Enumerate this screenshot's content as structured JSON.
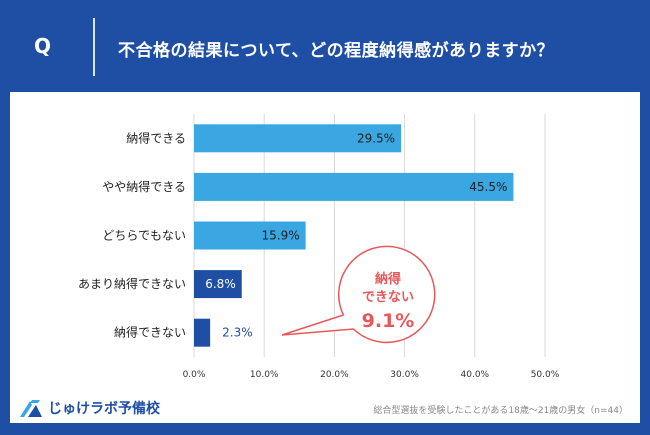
{
  "header": {
    "q_mark": "Q",
    "question": "不合格の結果について、どの程度納得感がありますか？"
  },
  "chart_data": {
    "type": "bar",
    "orientation": "horizontal",
    "categories": [
      "納得できる",
      "やや納得できる",
      "どちらでもない",
      "あまり納得できない",
      "納得できない"
    ],
    "values": [
      29.5,
      45.5,
      15.9,
      6.8,
      2.3
    ],
    "value_labels": [
      "29.5%",
      "45.5%",
      "15.9%",
      "6.8%",
      "2.3%"
    ],
    "xlim": [
      0,
      50
    ],
    "x_ticks": [
      "0.0%",
      "10.0%",
      "20.0%",
      "30.0%",
      "40.0%",
      "50.0%"
    ],
    "grid": true,
    "colors": {
      "positive": "#3aa6e2",
      "negative": "#1f4fa5",
      "grid": "#d9d9d9",
      "callout": "#e8585a"
    },
    "bar_groups": [
      "positive",
      "positive",
      "positive",
      "negative",
      "negative"
    ],
    "callout": {
      "line1": "納得",
      "line2": "できない",
      "value": "9.1%"
    }
  },
  "footer": {
    "logo_text": "じゅけラボ予備校",
    "footnote": "総合型選抜を受験したことがある18歳～21歳の男女（n=44）"
  }
}
